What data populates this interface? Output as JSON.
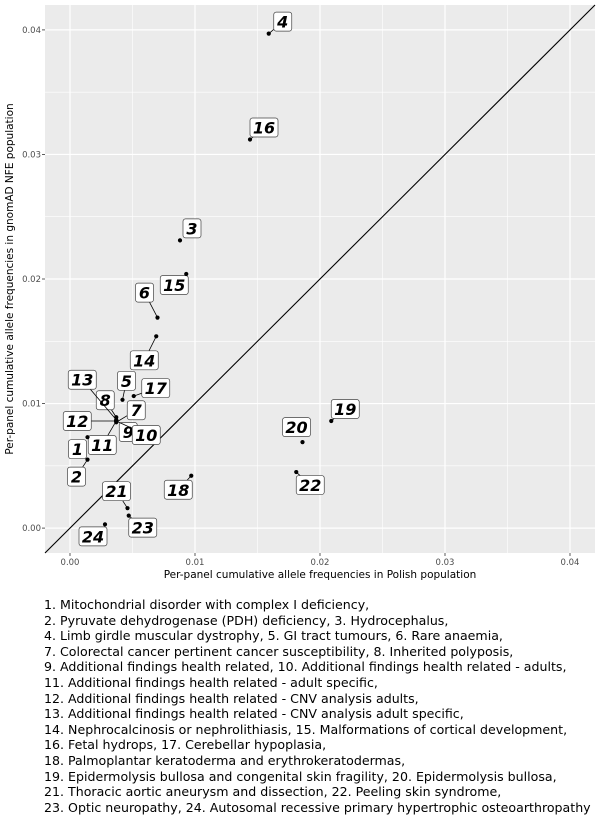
{
  "chart_data": {
    "type": "scatter",
    "xlabel": "Per-panel cumulative allele frequencies in Polish population",
    "ylabel": "Per-panel cumulative allele frequencies in gnomAD NFE population",
    "xlim": [
      -0.002,
      0.042
    ],
    "ylim": [
      -0.002,
      0.042
    ],
    "x_ticks": [
      "0.00",
      "0.01",
      "0.02",
      "0.03",
      "0.04"
    ],
    "y_ticks": [
      "0.00",
      "0.01",
      "0.02",
      "0.03",
      "0.04"
    ],
    "grid": true,
    "reference_line": "y = x",
    "points": [
      {
        "label": "1",
        "x": 0.0014,
        "y": 0.0073
      },
      {
        "label": "2",
        "x": 0.0014,
        "y": 0.0055
      },
      {
        "label": "3",
        "x": 0.0088,
        "y": 0.0231
      },
      {
        "label": "4",
        "x": 0.0159,
        "y": 0.0397
      },
      {
        "label": "5",
        "x": 0.0042,
        "y": 0.0103
      },
      {
        "label": "6",
        "x": 0.007,
        "y": 0.0169
      },
      {
        "label": "7",
        "x": 0.0037,
        "y": 0.0085
      },
      {
        "label": "8",
        "x": 0.0037,
        "y": 0.0089
      },
      {
        "label": "9",
        "x": 0.0037,
        "y": 0.0086
      },
      {
        "label": "10",
        "x": 0.0037,
        "y": 0.0086
      },
      {
        "label": "11",
        "x": 0.0037,
        "y": 0.0086
      },
      {
        "label": "12",
        "x": 0.0037,
        "y": 0.0086
      },
      {
        "label": "13",
        "x": 0.0037,
        "y": 0.0087
      },
      {
        "label": "14",
        "x": 0.0069,
        "y": 0.0154
      },
      {
        "label": "15",
        "x": 0.0093,
        "y": 0.0204
      },
      {
        "label": "16",
        "x": 0.0144,
        "y": 0.0312
      },
      {
        "label": "17",
        "x": 0.0051,
        "y": 0.0106
      },
      {
        "label": "18",
        "x": 0.0097,
        "y": 0.0042
      },
      {
        "label": "19",
        "x": 0.0209,
        "y": 0.0086
      },
      {
        "label": "20",
        "x": 0.0186,
        "y": 0.0069
      },
      {
        "label": "21",
        "x": 0.0046,
        "y": 0.0016
      },
      {
        "label": "22",
        "x": 0.0181,
        "y": 0.0045
      },
      {
        "label": "23",
        "x": 0.0047,
        "y": 0.001
      },
      {
        "label": "24",
        "x": 0.0028,
        "y": 0.0003
      }
    ],
    "legend_lines": [
      "1. Mitochondrial disorder with complex I deficiency,",
      "2. Pyruvate dehydrogenase (PDH) deficiency, 3. Hydrocephalus,",
      "4. Limb girdle muscular dystrophy, 5. GI tract tumours, 6. Rare anaemia,",
      "7. Colorectal cancer pertinent cancer susceptibility, 8. Inherited polyposis,",
      "9. Additional findings health related, 10. Additional findings health related - adults,",
      "11. Additional findings health related - adult specific,",
      "12. Additional findings health related - CNV analysis adults,",
      "13. Additional findings health related - CNV analysis adult specific,",
      "14. Nephrocalcinosis or nephrolithiasis, 15. Malformations of cortical development,",
      "16. Fetal hydrops, 17. Cerebellar hypoplasia,",
      "18. Palmoplantar keratoderma and erythrokeratodermas,",
      "19. Epidermolysis bullosa and congenital skin fragility, 20. Epidermolysis bullosa,",
      "21. Thoracic aortic aneurysm and dissection, 22. Peeling skin syndrome,",
      "23. Optic neuropathy, 24. Autosomal recessive primary hypertrophic osteoarthropathy"
    ],
    "colors": {
      "panel_background": "#ebebeb",
      "grid_line": "#ffffff",
      "point": "#000000",
      "reference_line": "#000000",
      "tick_label": "#4d4d4d"
    }
  }
}
